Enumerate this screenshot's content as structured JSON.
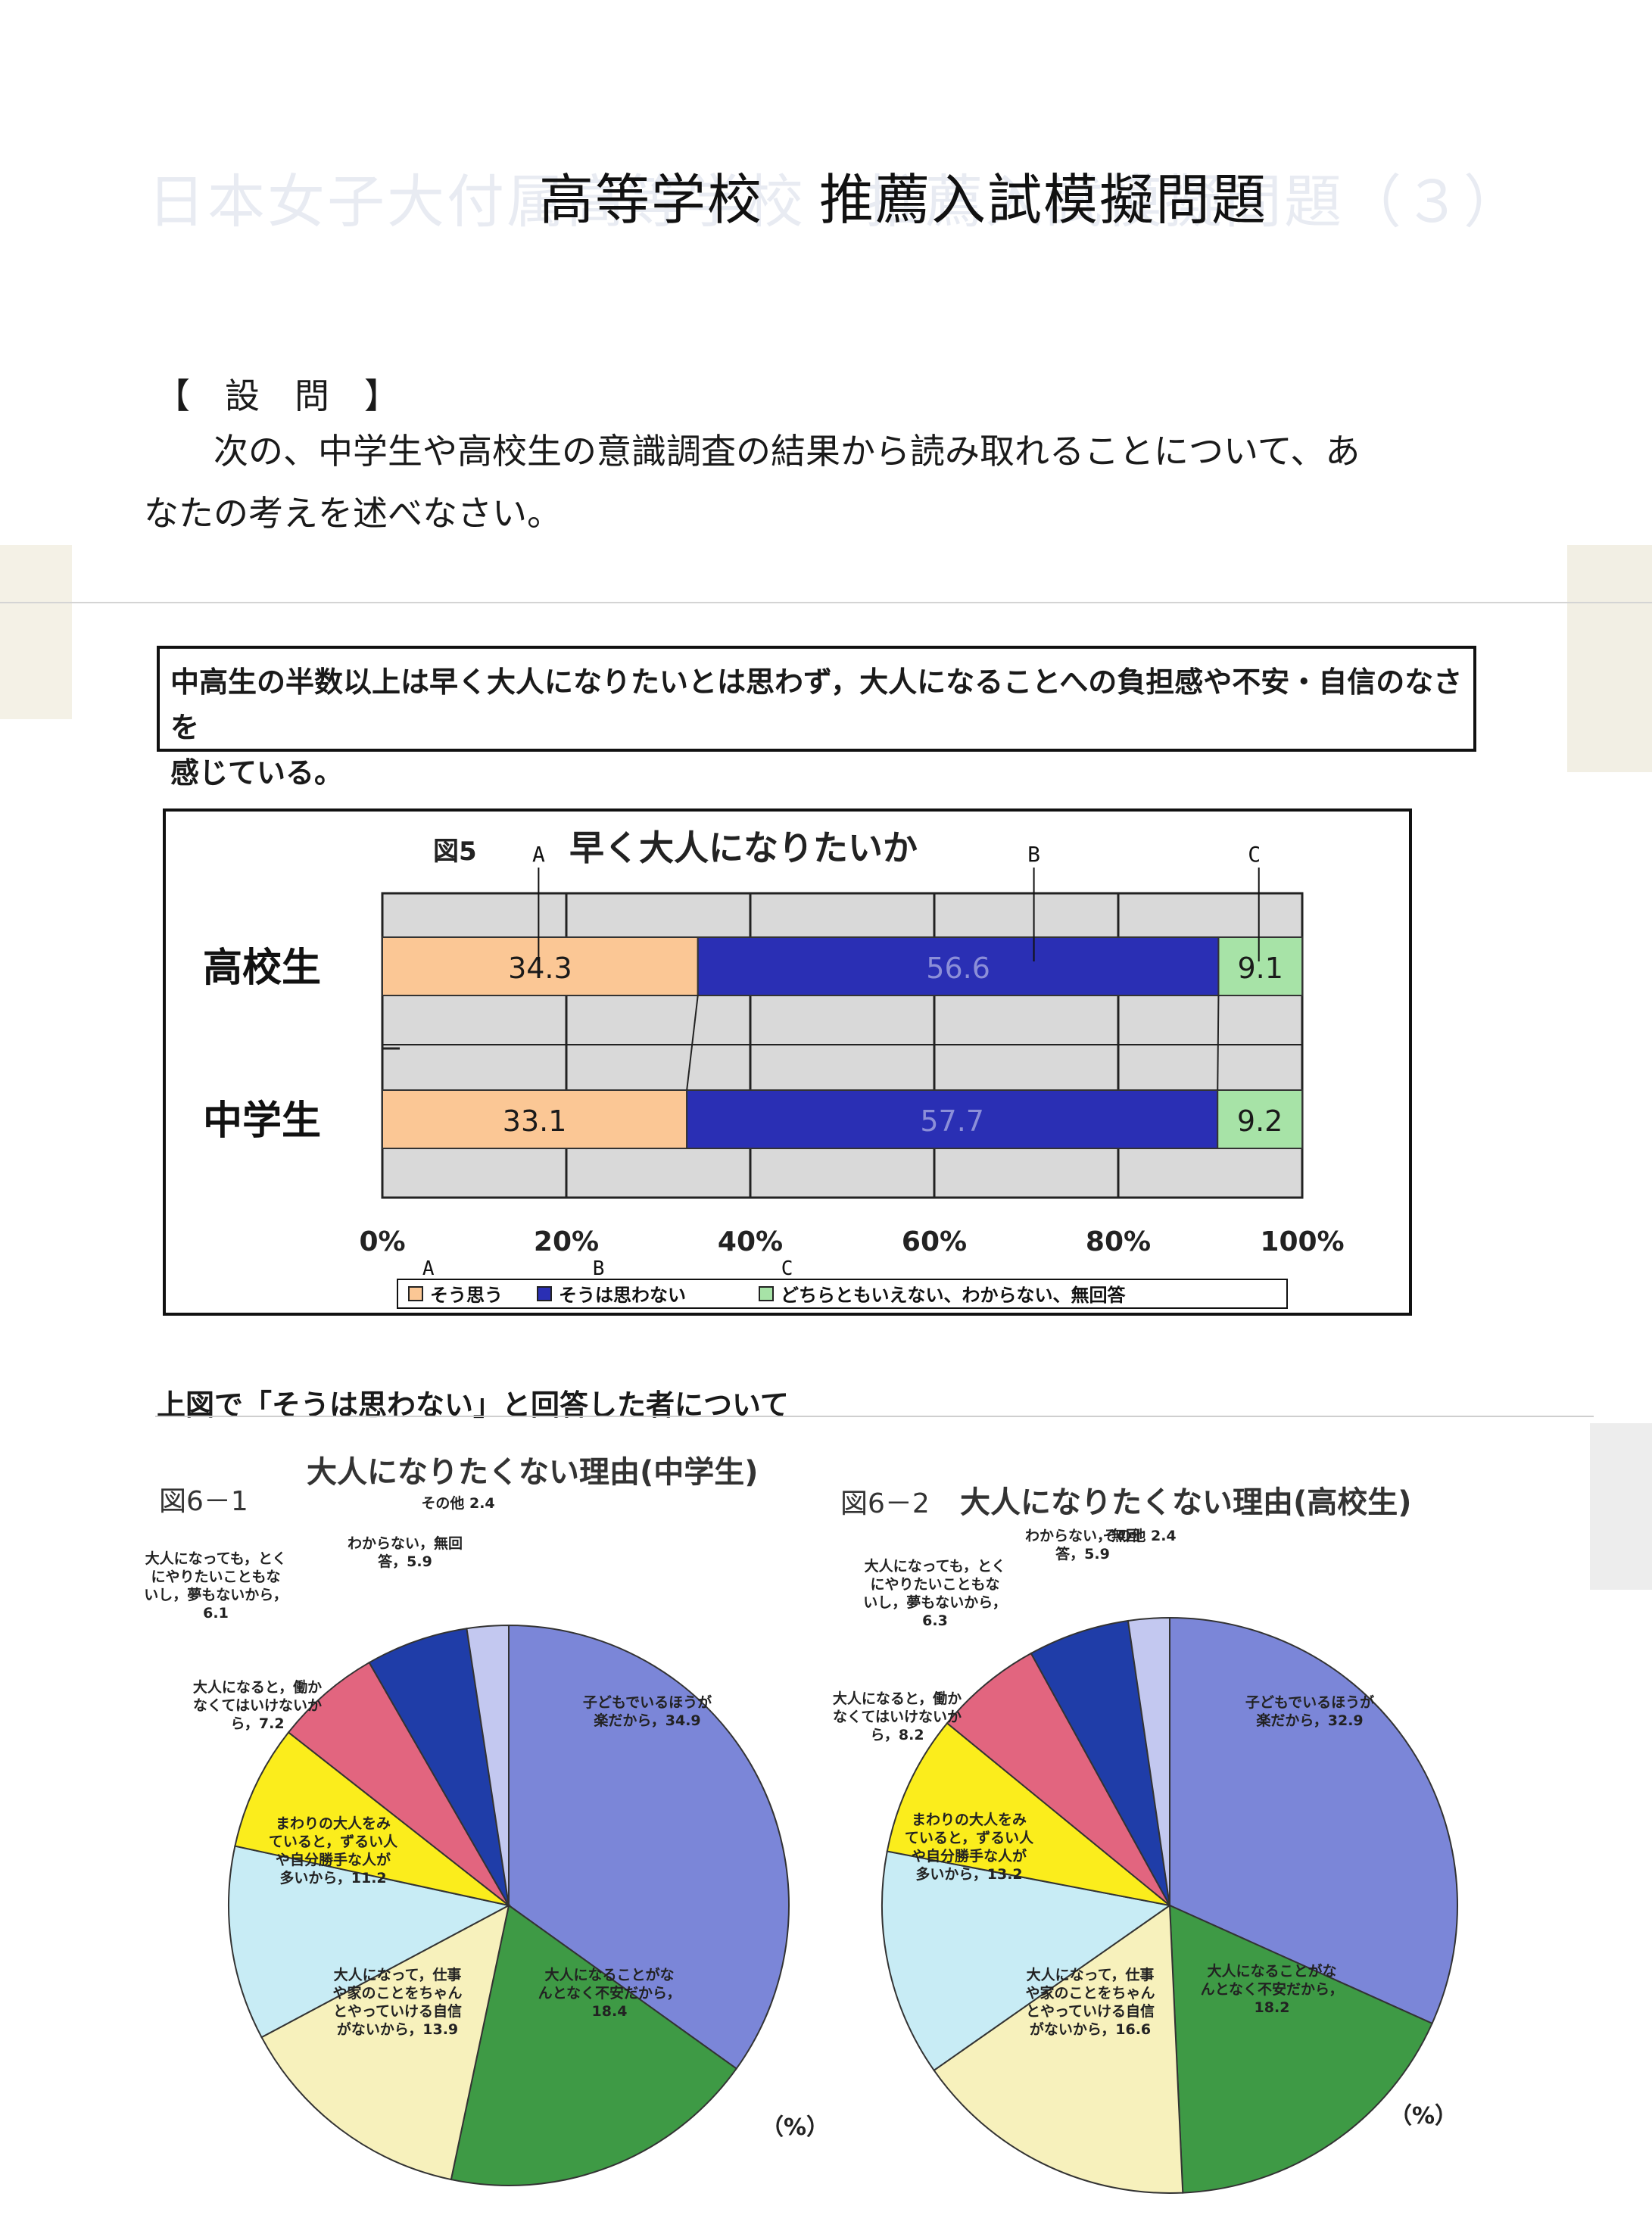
{
  "header": {
    "faded_title": "日本女子大付属高等学校　推薦入試模擬問題（３）",
    "title": "高等学校　推薦入試模擬問題"
  },
  "question": {
    "heading": "【　設　問　】",
    "line1": "次の、中学生や高校生の意識調査の結果から読み取れることについて、あ",
    "line2": "なたの考えを述べなさい。"
  },
  "summary": {
    "line1": "中高生の半数以上は早く大人になりたいとは思わず，大人になることへの負担感や不安・自信のなさを",
    "line2": "感じている。"
  },
  "under_caption": "上図で「そうは思わない」と回答した者について",
  "colors": {
    "orange": "#fbc795",
    "blue": "#2a2fb4",
    "green": "#a7e3a7",
    "pie_blue": "#7b86d8",
    "pie_green": "#3e9a45",
    "pie_cream": "#f7f1bc",
    "pie_lightblue": "#c8ecf5",
    "pie_yellow": "#fbed1c",
    "pie_pink": "#e2657f",
    "pie_navy": "#1f3da8",
    "pie_lavender": "#c3c8f0"
  },
  "chart_data": [
    {
      "type": "bar",
      "stacked": true,
      "orientation": "horizontal",
      "figure_label": "図5",
      "title": "早く大人になりたいか",
      "categories": [
        "高校生",
        "中学生"
      ],
      "series": [
        {
          "name": "そう思う",
          "values": [
            34.3,
            33.1
          ]
        },
        {
          "name": "そうは思わない",
          "values": [
            56.6,
            57.7
          ]
        },
        {
          "name": "どちらともいえない、わからない、無回答",
          "values": [
            9.1,
            9.2
          ]
        }
      ],
      "value_labels": [
        [
          "34.3",
          "56.6",
          "9.1"
        ],
        [
          "33.1",
          "57.7",
          "9.2"
        ]
      ],
      "xlim": [
        0,
        100
      ],
      "x_ticks": [
        "0%",
        "20%",
        "40%",
        "60%",
        "80%",
        "100%"
      ],
      "grid": true,
      "legend_position": "bottom",
      "annotations": {
        "markers": [
          "A",
          "B",
          "C"
        ]
      }
    },
    {
      "type": "pie",
      "figure_label": "図6－1",
      "title": "大人になりたくない理由(中学生)",
      "unit": "（%）",
      "slices": [
        {
          "label": "子どもでいるほうが楽だから，",
          "value": 34.9,
          "value_text": "34.9",
          "lines": [
            "子どもでいるほうが",
            "楽だから，34.9"
          ]
        },
        {
          "label": "大人になることがなんとなく不安だから，",
          "value": 18.4,
          "value_text": "18.4",
          "lines": [
            "大人になることがな",
            "んとなく不安だから，",
            "18.4"
          ]
        },
        {
          "label": "大人になって，仕事や家のことをちゃんとやっていける自信がないから，",
          "value": 13.9,
          "value_text": "13.9",
          "lines": [
            "大人になって，仕事",
            "や家のことをちゃん",
            "とやっていける自信",
            "がないから，13.9"
          ]
        },
        {
          "label": "まわりの大人をみていると，ずるい人や自分勝手な人が多いから，",
          "value": 11.2,
          "value_text": "11.2",
          "lines": [
            "まわりの大人をみ",
            "ていると，ずるい人",
            "や自分勝手な人が",
            "多いから，11.2"
          ]
        },
        {
          "label": "大人になると，働かなくてはいけないから，",
          "value": 7.2,
          "value_text": "7.2",
          "lines": [
            "大人になると，働か",
            "なくてはいけないか",
            "ら，7.2"
          ]
        },
        {
          "label": "大人になっても，とくにやりたいこともないし，夢もないから，",
          "value": 6.1,
          "value_text": "6.1",
          "lines": [
            "大人になっても，とく",
            "にやりたいこともな",
            "いし，夢もないから，",
            "6.1"
          ]
        },
        {
          "label": "わからない，無回答，",
          "value": 5.9,
          "value_text": "5.9",
          "lines": [
            "わからない，無回",
            "答，5.9"
          ]
        },
        {
          "label": "その他",
          "value": 2.4,
          "value_text": "2.4",
          "lines": [
            "その他 2.4"
          ]
        }
      ]
    },
    {
      "type": "pie",
      "figure_label": "図6－2",
      "title": "大人になりたくない理由(高校生)",
      "unit": "（%）",
      "slices": [
        {
          "label": "子どもでいるほうが楽だから，",
          "value": 32.9,
          "value_text": "32.9",
          "lines": [
            "子どもでいるほうが",
            "楽だから，32.9"
          ]
        },
        {
          "label": "大人になることがなんとなく不安だから，",
          "value": 18.2,
          "value_text": "18.2",
          "lines": [
            "大人になることがな",
            "んとなく不安だから，",
            "18.2"
          ]
        },
        {
          "label": "大人になって，仕事や家のことをちゃんとやっていける自信がないから，",
          "value": 16.6,
          "value_text": "16.6",
          "lines": [
            "大人になって，仕事",
            "や家のことをちゃん",
            "とやっていける自信",
            "がないから，16.6"
          ]
        },
        {
          "label": "まわりの大人をみていると，ずるい人や自分勝手な人が多いから，",
          "value": 13.2,
          "value_text": "13.2",
          "lines": [
            "まわりの大人をみ",
            "ていると，ずるい人",
            "や自分勝手な人が",
            "多いから，13.2"
          ]
        },
        {
          "label": "大人になると，働かなくてはいけないから，",
          "value": 8.2,
          "value_text": "8.2",
          "lines": [
            "大人になると，働か",
            "なくてはいけないか",
            "ら，8.2"
          ]
        },
        {
          "label": "大人になっても，とくにやりたいこともないし，夢もないから，",
          "value": 6.3,
          "value_text": "6.3",
          "lines": [
            "大人になっても，とく",
            "にやりたいこともな",
            "いし，夢もないから，",
            "6.3"
          ]
        },
        {
          "label": "わからない，無回答，",
          "value": 5.9,
          "value_text": "5.9",
          "lines": [
            "わからない，無回",
            "答，5.9"
          ]
        },
        {
          "label": "その他",
          "value": 2.4,
          "value_text": "2.4",
          "lines": [
            "その他 2.4"
          ]
        }
      ]
    }
  ]
}
